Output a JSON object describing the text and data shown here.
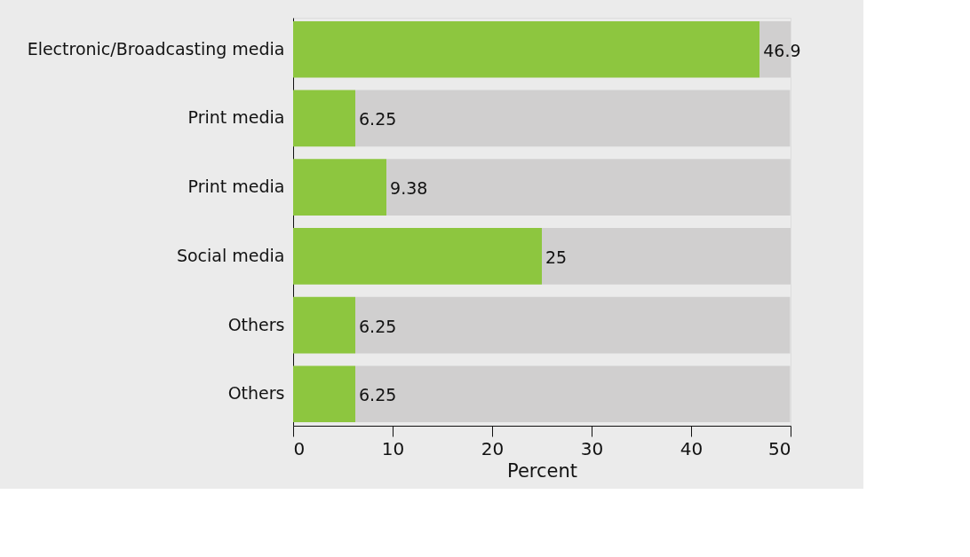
{
  "chart_data": {
    "type": "bar",
    "orientation": "horizontal",
    "stacked": true,
    "xlabel": "Percent",
    "categories": [
      "Electronic/Broadcasting media",
      "Print media",
      "Print media",
      "Social media",
      "Others",
      "Others"
    ],
    "series": [
      {
        "color": "#8dc63f",
        "values": [
          46.9,
          6.25,
          9.38,
          25,
          6.25,
          6.25
        ],
        "value_labels": [
          "46.9",
          "6.25",
          "9.38",
          "25",
          "6.25",
          "6.25"
        ]
      },
      {
        "color": "#d0cfcf",
        "values": [
          3.1,
          43.7,
          40.6,
          25,
          43.7,
          43.7
        ]
      }
    ],
    "xlim": [
      0,
      50
    ],
    "xticks": [
      0,
      10,
      20,
      30,
      40,
      50
    ],
    "grid": false
  }
}
